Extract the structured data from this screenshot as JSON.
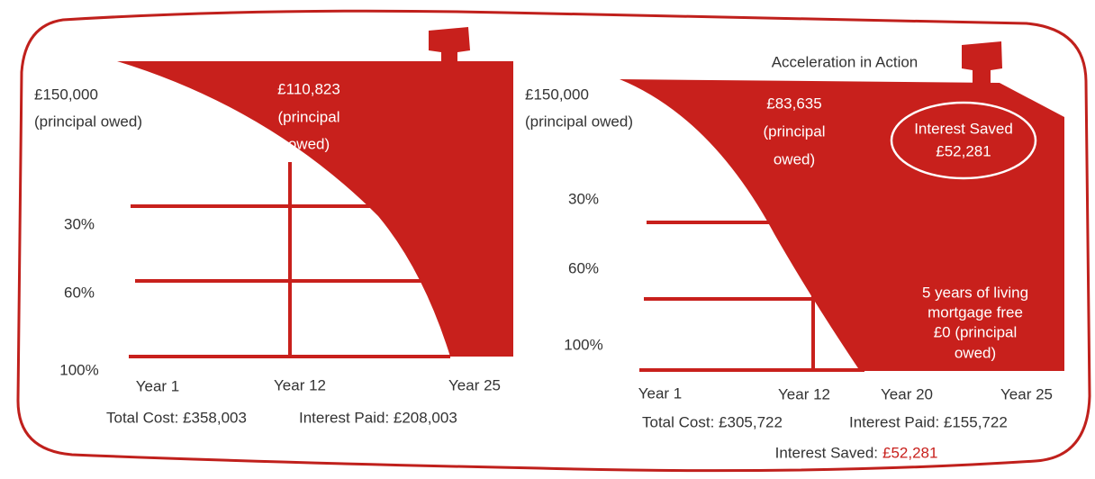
{
  "left": {
    "start_label": [
      "£150,000",
      "(principal owed)"
    ],
    "mid_label": [
      "£110,823",
      "(principal",
      "owed)"
    ],
    "levels": [
      "30%",
      "60%",
      "100%"
    ],
    "years": [
      "Year 1",
      "Year 12",
      "Year 25"
    ],
    "totals": [
      "Total Cost: £358,003",
      "Interest Paid: £208,003"
    ]
  },
  "right": {
    "title": "Acceleration in Action",
    "start_label": [
      "£150,000",
      "(principal owed)"
    ],
    "mid_label": [
      "£83,635",
      "(principal",
      "owed)"
    ],
    "saved_badge": [
      "Interest Saved",
      "£52,281"
    ],
    "levels": [
      "30%",
      "60%",
      "100%"
    ],
    "end_label": [
      "5 years of living",
      "mortgage free",
      "£0 (principal",
      "owed)"
    ],
    "years": [
      "Year 1",
      "Year 12",
      "Year 20",
      "Year 25"
    ],
    "totals": [
      "Total Cost: £305,722",
      "Interest Paid: £155,722"
    ],
    "saved_line": {
      "label": "Interest Saved:",
      "amount": "£52,281"
    }
  }
}
